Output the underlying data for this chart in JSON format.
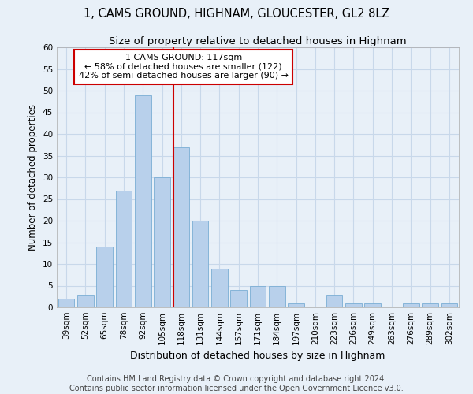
{
  "title": "1, CAMS GROUND, HIGHNAM, GLOUCESTER, GL2 8LZ",
  "subtitle": "Size of property relative to detached houses in Highnam",
  "xlabel": "Distribution of detached houses by size in Highnam",
  "ylabel": "Number of detached properties",
  "categories": [
    "39sqm",
    "52sqm",
    "65sqm",
    "78sqm",
    "92sqm",
    "105sqm",
    "118sqm",
    "131sqm",
    "144sqm",
    "157sqm",
    "171sqm",
    "184sqm",
    "197sqm",
    "210sqm",
    "223sqm",
    "236sqm",
    "249sqm",
    "263sqm",
    "276sqm",
    "289sqm",
    "302sqm"
  ],
  "values": [
    2,
    3,
    14,
    27,
    49,
    30,
    37,
    20,
    9,
    4,
    5,
    5,
    1,
    0,
    3,
    1,
    1,
    0,
    1,
    1,
    1
  ],
  "bar_color": "#b8d0eb",
  "bar_edge_color": "#7aadd4",
  "grid_color": "#c8d8ea",
  "background_color": "#e8f0f8",
  "marker_line_color": "#cc0000",
  "annotation_text": "1 CAMS GROUND: 117sqm\n← 58% of detached houses are smaller (122)\n42% of semi-detached houses are larger (90) →",
  "annotation_box_color": "#ffffff",
  "annotation_box_edge_color": "#cc0000",
  "ylim": [
    0,
    60
  ],
  "yticks": [
    0,
    5,
    10,
    15,
    20,
    25,
    30,
    35,
    40,
    45,
    50,
    55,
    60
  ],
  "footer_line1": "Contains HM Land Registry data © Crown copyright and database right 2024.",
  "footer_line2": "Contains public sector information licensed under the Open Government Licence v3.0.",
  "title_fontsize": 10.5,
  "subtitle_fontsize": 9.5,
  "xlabel_fontsize": 9,
  "ylabel_fontsize": 8.5,
  "tick_fontsize": 7.5,
  "annotation_fontsize": 8,
  "footer_fontsize": 7
}
